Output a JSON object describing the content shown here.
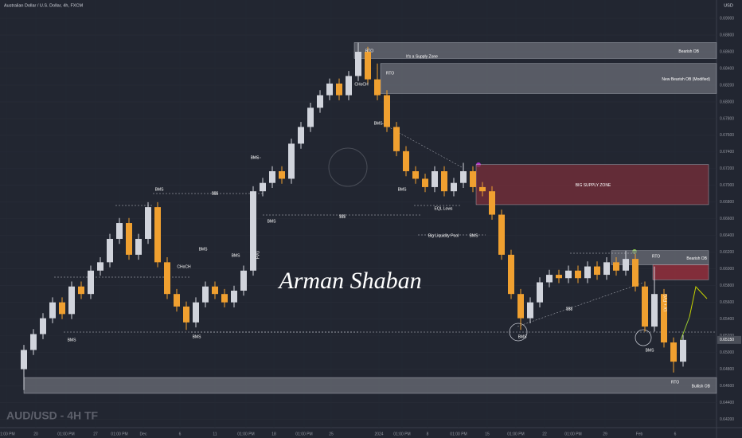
{
  "chart_data": {
    "type": "candlestick",
    "title": "Australian Dollar / U.S. Dollar, 4h, FXCM",
    "currency": "USD",
    "symbol_label": "AUD/USD - 4H TF",
    "signature": "Arman Shaban",
    "up_color": "#d1d4dc",
    "down_color": "#f0a030",
    "grid": true,
    "ylim": [
      0.641,
      0.6922
    ],
    "yticks": [
      {
        "value": 0.642,
        "label": "0.64200"
      },
      {
        "value": 0.644,
        "label": "0.64400"
      },
      {
        "value": 0.646,
        "label": "0.64600"
      },
      {
        "value": 0.648,
        "label": "0.64800"
      },
      {
        "value": 0.65,
        "label": "0.65000"
      },
      {
        "value": 0.652,
        "label": "0.65200"
      },
      {
        "value": 0.654,
        "label": "0.65400"
      },
      {
        "value": 0.656,
        "label": "0.65600"
      },
      {
        "value": 0.658,
        "label": "0.65800"
      },
      {
        "value": 0.66,
        "label": "0.66000"
      },
      {
        "value": 0.662,
        "label": "0.66200"
      },
      {
        "value": 0.664,
        "label": "0.66400"
      },
      {
        "value": 0.666,
        "label": "0.66600"
      },
      {
        "value": 0.668,
        "label": "0.66800"
      },
      {
        "value": 0.67,
        "label": "0.67000"
      },
      {
        "value": 0.672,
        "label": "0.67200"
      },
      {
        "value": 0.674,
        "label": "0.67400"
      },
      {
        "value": 0.676,
        "label": "0.67600"
      },
      {
        "value": 0.678,
        "label": "0.67800"
      },
      {
        "value": 0.68,
        "label": "0.68000"
      },
      {
        "value": 0.682,
        "label": "0.68200"
      },
      {
        "value": 0.684,
        "label": "0.68400"
      },
      {
        "value": 0.686,
        "label": "0.68600"
      },
      {
        "value": 0.688,
        "label": "0.68800"
      },
      {
        "value": 0.69,
        "label": "0.69000"
      }
    ],
    "last_price": {
      "value": 0.6515,
      "label": "0.65150"
    },
    "x_labels": [
      "01:00 PM",
      "20",
      "01:00 PM",
      "27",
      "01:00 PM",
      "Dec",
      "6",
      "11",
      "01:00 PM",
      "18",
      "01:00 PM",
      "25",
      "2024",
      "01:00 PM",
      "8",
      "01:00 PM",
      "15",
      "01:00 PM",
      "22",
      "01:00 PM",
      "29",
      "Feb",
      "6"
    ],
    "open": [
      0.648,
      0.6503,
      0.6522,
      0.6541,
      0.656,
      0.6546,
      0.6579,
      0.657,
      0.6598,
      0.6608,
      0.6636,
      0.6655,
      0.6617,
      0.6636,
      0.6674,
      0.6608,
      0.657,
      0.6555,
      0.6536,
      0.656,
      0.6579,
      0.657,
      0.656,
      0.6574,
      0.6598,
      0.6693,
      0.6703,
      0.6717,
      0.6708,
      0.675,
      0.677,
      0.6793,
      0.6808,
      0.6822,
      0.6808,
      0.6831,
      0.686,
      0.6827,
      0.6808,
      0.677,
      0.6741,
      0.6717,
      0.6708,
      0.6698,
      0.6717,
      0.6693,
      0.6703,
      0.6717,
      0.6698,
      0.6693,
      0.6665,
      0.6617,
      0.657,
      0.6541,
      0.656,
      0.6584,
      0.6593,
      0.6589,
      0.6598,
      0.6589,
      0.6603,
      0.6593,
      0.6608,
      0.6598,
      0.6612,
      0.6579,
      0.6531,
      0.657,
      0.6512,
      0.6489
    ],
    "high": [
      0.6509,
      0.6528,
      0.6547,
      0.6566,
      0.6566,
      0.6585,
      0.6585,
      0.6604,
      0.6614,
      0.6642,
      0.6661,
      0.6661,
      0.6642,
      0.668,
      0.668,
      0.6614,
      0.6576,
      0.6561,
      0.6566,
      0.6585,
      0.6585,
      0.6576,
      0.658,
      0.6604,
      0.6699,
      0.6709,
      0.6723,
      0.6723,
      0.6756,
      0.6776,
      0.6799,
      0.6814,
      0.6828,
      0.6828,
      0.6837,
      0.6871,
      0.6866,
      0.6846,
      0.6814,
      0.6776,
      0.6747,
      0.6723,
      0.6714,
      0.6723,
      0.6723,
      0.6709,
      0.6727,
      0.6723,
      0.6704,
      0.6699,
      0.6671,
      0.6623,
      0.6576,
      0.6566,
      0.659,
      0.6599,
      0.6599,
      0.6604,
      0.6604,
      0.6609,
      0.6609,
      0.6614,
      0.6614,
      0.6622,
      0.6618,
      0.6585,
      0.6603,
      0.6576,
      0.6518,
      0.6521
    ],
    "low": [
      0.6455,
      0.6497,
      0.6516,
      0.6535,
      0.654,
      0.654,
      0.6564,
      0.6564,
      0.6592,
      0.6602,
      0.663,
      0.6611,
      0.6611,
      0.663,
      0.6602,
      0.6564,
      0.6549,
      0.6527,
      0.653,
      0.6554,
      0.6564,
      0.6554,
      0.6554,
      0.6568,
      0.6592,
      0.6687,
      0.6697,
      0.6702,
      0.6702,
      0.6744,
      0.6764,
      0.6787,
      0.6802,
      0.6802,
      0.6802,
      0.6825,
      0.6821,
      0.6802,
      0.6764,
      0.6735,
      0.6711,
      0.6702,
      0.6692,
      0.6692,
      0.6687,
      0.6687,
      0.6697,
      0.6692,
      0.6687,
      0.6659,
      0.6611,
      0.6564,
      0.6527,
      0.6535,
      0.6554,
      0.6578,
      0.6583,
      0.6583,
      0.6583,
      0.6583,
      0.6587,
      0.6587,
      0.6592,
      0.6592,
      0.6573,
      0.6525,
      0.6525,
      0.6506,
      0.6476,
      0.6483
    ],
    "close": [
      0.6503,
      0.6522,
      0.6541,
      0.656,
      0.6546,
      0.6579,
      0.657,
      0.6598,
      0.6608,
      0.6636,
      0.6655,
      0.6617,
      0.6636,
      0.6674,
      0.6608,
      0.657,
      0.6555,
      0.6536,
      0.656,
      0.6579,
      0.657,
      0.656,
      0.6574,
      0.6598,
      0.6693,
      0.6703,
      0.6717,
      0.6708,
      0.675,
      0.677,
      0.6793,
      0.6808,
      0.6822,
      0.6808,
      0.6831,
      0.686,
      0.6827,
      0.6808,
      0.677,
      0.6741,
      0.6717,
      0.6708,
      0.6698,
      0.6717,
      0.6693,
      0.6703,
      0.6717,
      0.6698,
      0.6693,
      0.6665,
      0.6617,
      0.657,
      0.6541,
      0.656,
      0.6584,
      0.6593,
      0.6589,
      0.6598,
      0.6589,
      0.6603,
      0.6593,
      0.6608,
      0.6598,
      0.6612,
      0.6579,
      0.6531,
      0.657,
      0.6512,
      0.6489,
      0.6515
    ],
    "zones": [
      {
        "label": "Bearish OB",
        "top": 0.6871,
        "bottom": 0.6852,
        "color": "#6b6e77"
      },
      {
        "label": "New Bearish OB (Modified)",
        "top": 0.6846,
        "bottom": 0.681,
        "color": "#6b6e77"
      },
      {
        "label": "BIG SUPPLY ZONE",
        "top": 0.6725,
        "bottom": 0.6677,
        "color": "#7a2f3a"
      },
      {
        "label": "Bearish OB",
        "top": 0.6622,
        "bottom": 0.6605,
        "color": "#6b6e77"
      },
      {
        "top": 0.6605,
        "bottom": 0.6587,
        "color": "#a3303e"
      },
      {
        "label": "Bullish OB",
        "top": 0.647,
        "bottom": 0.6451,
        "color": "#6b6e77"
      }
    ],
    "annotations": [
      "RTO",
      "It's a Supply Zone",
      "CHoCH",
      "RTO",
      "BMS",
      "BMS",
      "BMS",
      "$$$",
      "BMS",
      "EQL Lows",
      "BMS",
      "$$$",
      "Big Liquidity Pool",
      "BMS",
      "BMS",
      "BMS",
      "CHoCH",
      "FVG",
      "RTO",
      "$$$",
      "LV + FVG",
      "BMS",
      "BMS",
      "BMS",
      "BMS",
      "RTO"
    ]
  }
}
